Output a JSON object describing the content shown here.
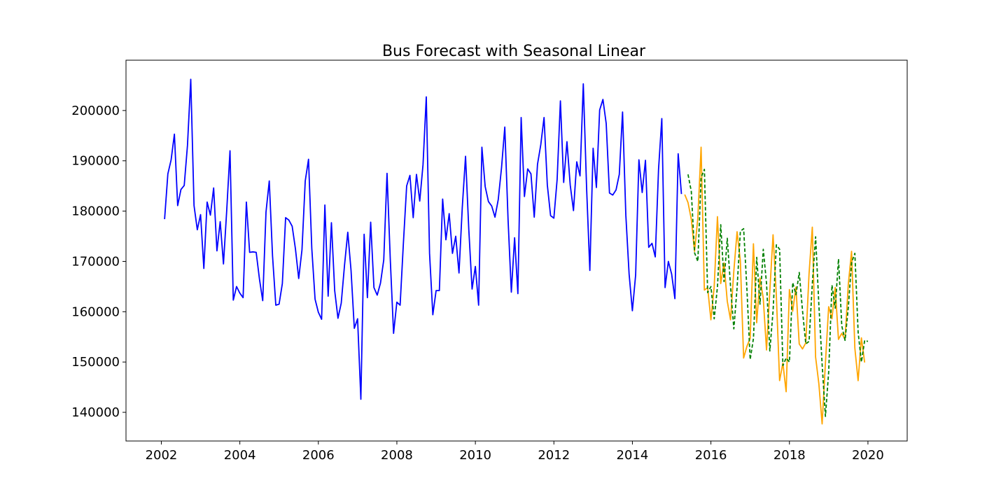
{
  "chart_data": {
    "type": "line",
    "title": "Bus Forecast with Seasonal Linear",
    "xlabel": "",
    "ylabel": "",
    "xlim": [
      2001.1,
      2021.0
    ],
    "ylim": [
      134300,
      210000
    ],
    "xticks": [
      2002,
      2004,
      2006,
      2008,
      2010,
      2012,
      2014,
      2016,
      2018,
      2020
    ],
    "xtick_labels": [
      "2002",
      "2004",
      "2006",
      "2008",
      "2010",
      "2012",
      "2014",
      "2016",
      "2018",
      "2020"
    ],
    "yticks": [
      140000,
      150000,
      160000,
      170000,
      180000,
      190000,
      200000
    ],
    "ytick_labels": [
      "140000",
      "150000",
      "160000",
      "170000",
      "180000",
      "190000",
      "200000"
    ],
    "grid": false,
    "legend": "none",
    "series": [
      {
        "color": "#0000ff",
        "style": "solid",
        "x_start": 2002.083,
        "x_step": 0.08333,
        "values": [
          178400,
          187400,
          190200,
          195300,
          181100,
          184300,
          185100,
          193100,
          206200,
          181100,
          176300,
          179300,
          168600,
          181800,
          179200,
          184600,
          172100,
          177900,
          169500,
          180200,
          192000,
          162300,
          165000,
          163700,
          162800,
          181800,
          171800,
          171900,
          171800,
          166500,
          162200,
          179800,
          186000,
          171100,
          161300,
          161500,
          165600,
          178700,
          178200,
          177000,
          172500,
          166600,
          172300,
          186000,
          190300,
          172600,
          162500,
          159900,
          158500,
          181200,
          163100,
          177700,
          164200,
          158700,
          161700,
          169200,
          175800,
          168200,
          156700,
          158600,
          142600,
          175400,
          162800,
          177800,
          164800,
          163300,
          165700,
          170300,
          187500,
          170300,
          155700,
          161900,
          161300,
          173600,
          185000,
          187100,
          178700,
          187300,
          182000,
          189200,
          202700,
          171600,
          159400,
          164200,
          164200,
          182400,
          174300,
          179500,
          171600,
          175000,
          167700,
          180700,
          190900,
          176300,
          164500,
          169000,
          161300,
          192700,
          184900,
          181900,
          181000,
          178800,
          182300,
          188600,
          196700,
          178300,
          163900,
          174700,
          163600,
          198600,
          182900,
          188400,
          187400,
          178800,
          189300,
          193200,
          198600,
          185200,
          179100,
          178600,
          186300,
          201900,
          185700,
          193800,
          185200,
          180100,
          189800,
          187000,
          205300,
          184700,
          168200,
          192500,
          184700,
          200100,
          202200,
          197400,
          183600,
          183200,
          184200,
          187300,
          199700,
          179200,
          167500,
          160200,
          167300,
          190200,
          183700,
          190100,
          172800,
          173600,
          170900,
          188300,
          198400,
          164800,
          170000,
          167500,
          162600,
          191400,
          183400
        ]
      },
      {
        "color": "#ffa500",
        "style": "solid",
        "x_start": 2015.333,
        "x_step": 0.08333,
        "values": [
          183300,
          181700,
          178400,
          172000,
          178600,
          192700,
          164300,
          164800,
          158400,
          164900,
          178900,
          165600,
          169700,
          162100,
          158400,
          168000,
          175900,
          170100,
          150800,
          153100,
          154700,
          173500,
          157800,
          166700,
          162700,
          152400,
          164000,
          175300,
          163300,
          146300,
          149800,
          144100,
          164400,
          160100,
          164900,
          153600,
          152600,
          153800,
          167500,
          176800,
          151000,
          145700,
          137700,
          149700,
          161000,
          158600,
          164800,
          154500,
          155700,
          154500,
          165400,
          172000,
          152800,
          146300,
          154800,
          149900
        ]
      },
      {
        "color": "#008000",
        "style": "dashed",
        "x_start": 2015.417,
        "x_step": 0.08333,
        "values": [
          187300,
          183900,
          171700,
          170000,
          186700,
          188300,
          163800,
          165000,
          158600,
          165000,
          177300,
          166000,
          174600,
          165000,
          156600,
          164800,
          176000,
          176500,
          164500,
          150500,
          154700,
          170800,
          161500,
          172400,
          165600,
          152200,
          160200,
          173300,
          172400,
          149300,
          150800,
          150000,
          165800,
          163400,
          167800,
          160200,
          153600,
          154100,
          165600,
          174900,
          161300,
          149500,
          139200,
          148100,
          165300,
          160700,
          170500,
          157200,
          154300,
          160900,
          169800,
          171600,
          155900,
          150000,
          154300,
          154100
        ]
      }
    ]
  }
}
